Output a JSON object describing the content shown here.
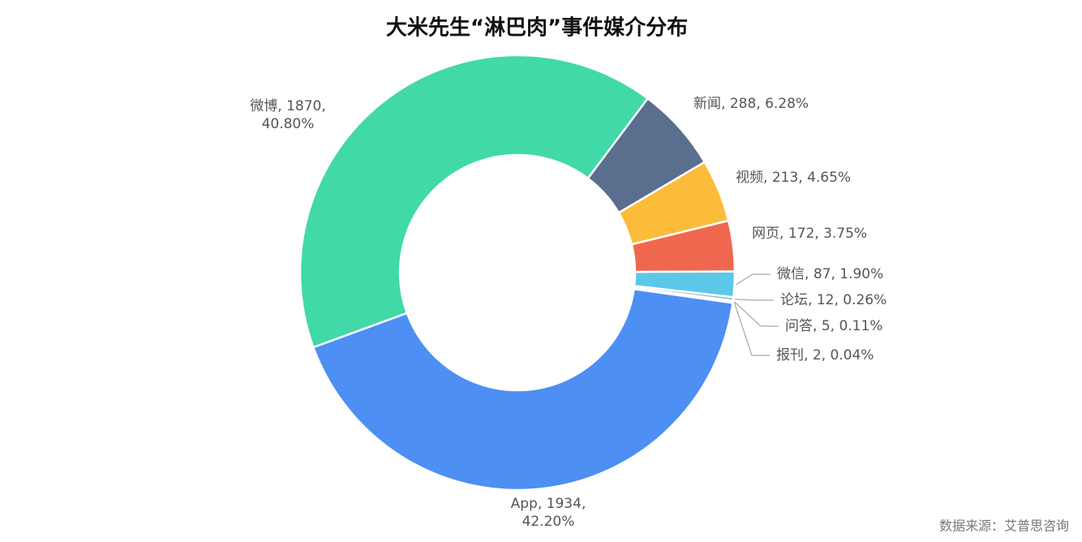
{
  "chart_data": {
    "type": "donut",
    "title": "大米先生“淋巴肉”事件媒介分布",
    "categories": [
      "App",
      "微博",
      "新闻",
      "视频",
      "网页",
      "微信",
      "论坛",
      "问答",
      "报刊"
    ],
    "values": [
      1934,
      1870,
      288,
      213,
      172,
      87,
      12,
      5,
      2
    ],
    "percents": [
      42.2,
      40.8,
      6.28,
      4.65,
      3.75,
      1.9,
      0.26,
      0.11,
      0.04
    ],
    "percent_labels": [
      "42.20%",
      "40.80%",
      "6.28%",
      "4.65%",
      "3.75%",
      "1.90%",
      "0.26%",
      "0.11%",
      "0.04%"
    ],
    "colors": [
      "#4d8ff3",
      "#41d9a8",
      "#5a6e8e",
      "#fbbc3a",
      "#f0674f",
      "#5bc8ea",
      "#9fb6d6",
      "#c9c9c9",
      "#d9d9d9"
    ],
    "source": "数据来源：艾普思咨询"
  }
}
